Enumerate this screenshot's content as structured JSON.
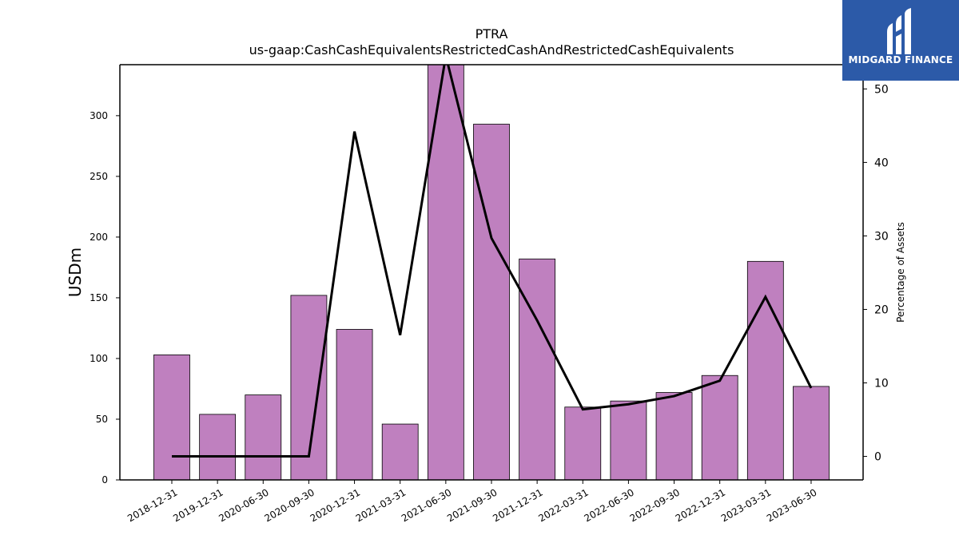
{
  "chart_data": {
    "type": "bar",
    "title": "PTRA",
    "subtitle": "us-gaap:CashCashEquivalentsRestrictedCashAndRestrictedCashEquivalents",
    "ylabel": "USDm",
    "ylabel_right": "Percentage of Assets",
    "categories": [
      "2018-12-31",
      "2019-12-31",
      "2020-06-30",
      "2020-09-30",
      "2020-12-31",
      "2021-03-31",
      "2021-06-30",
      "2021-09-30",
      "2021-12-31",
      "2022-03-31",
      "2022-06-30",
      "2022-09-30",
      "2022-12-31",
      "2023-03-31",
      "2023-06-30"
    ],
    "series": [
      {
        "type": "bar",
        "axis": "left",
        "color": "#bf80bf",
        "values": [
          103,
          54,
          70,
          152,
          124,
          46,
          345,
          293,
          182,
          60,
          65,
          72,
          86,
          180,
          77
        ]
      },
      {
        "type": "line",
        "axis": "right",
        "color": "#000000",
        "values": [
          0,
          0,
          0,
          0,
          44.2,
          16.5,
          54.5,
          29.7,
          18.5,
          6.4,
          7.1,
          8.2,
          10.3,
          21.7,
          9.3
        ]
      }
    ],
    "ylim": [
      0,
      342
    ],
    "ylim_right": [
      -3.2,
      53.3
    ],
    "yticks": [
      0,
      50,
      100,
      150,
      200,
      250,
      300
    ],
    "yticks_right": [
      0,
      10,
      20,
      30,
      40,
      50
    ],
    "grid": false,
    "legend": "none"
  },
  "logo": {
    "text": "MIDGARD FINANCE",
    "background": "#2c5aa8",
    "icon": "midgard-logo-icon"
  }
}
